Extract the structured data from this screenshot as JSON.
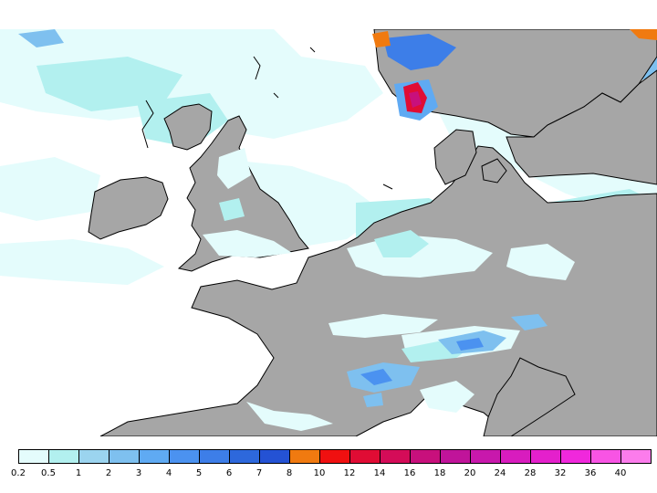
{
  "map": {
    "region": "North-west Europe",
    "colors": {
      "sea": "#ffffff",
      "land": "#a6a6a6",
      "coastline": "#000000"
    }
  },
  "legend": {
    "items": [
      {
        "value": "0.2",
        "color": "#e4fcfc"
      },
      {
        "value": "0.5",
        "color": "#b2f0ef"
      },
      {
        "value": "1",
        "color": "#9bd4ef"
      },
      {
        "value": "2",
        "color": "#7ec0ef"
      },
      {
        "value": "3",
        "color": "#5faaf3"
      },
      {
        "value": "4",
        "color": "#4b92f0"
      },
      {
        "value": "5",
        "color": "#3d7ee8"
      },
      {
        "value": "6",
        "color": "#2d68dc"
      },
      {
        "value": "7",
        "color": "#2452d4"
      },
      {
        "value": "8",
        "color": "#f07a10"
      },
      {
        "value": "10",
        "color": "#f01010"
      },
      {
        "value": "12",
        "color": "#e00c34"
      },
      {
        "value": "14",
        "color": "#d40c58"
      },
      {
        "value": "16",
        "color": "#c8107c"
      },
      {
        "value": "18",
        "color": "#c0149a"
      },
      {
        "value": "20",
        "color": "#c818ac"
      },
      {
        "value": "24",
        "color": "#d81cbe"
      },
      {
        "value": "28",
        "color": "#e420cc"
      },
      {
        "value": "32",
        "color": "#f028dc"
      },
      {
        "value": "36",
        "color": "#f854e4"
      },
      {
        "value": "40",
        "color": "#fc7cec"
      }
    ]
  }
}
